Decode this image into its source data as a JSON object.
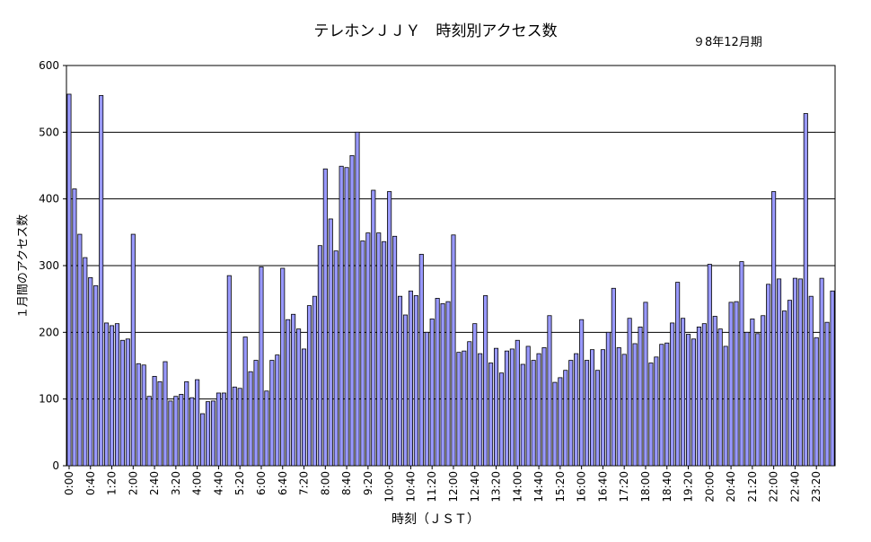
{
  "chart_data": {
    "type": "bar",
    "title": "テレホンＪＪＹ　時刻別アクセス数",
    "subtitle": "９8年12月期",
    "xlabel": "時刻（ＪＳＴ）",
    "ylabel": "１月間のアクセス数",
    "ylim": [
      0,
      600
    ],
    "yticks": [
      0,
      100,
      200,
      300,
      400,
      500,
      600
    ],
    "xticks": [
      "0:00",
      "0:40",
      "1:20",
      "2:00",
      "2:40",
      "3:20",
      "4:00",
      "4:40",
      "5:20",
      "6:00",
      "6:40",
      "7:20",
      "8:00",
      "8:40",
      "9:20",
      "10:00",
      "10:40",
      "11:20",
      "12:00",
      "12:40",
      "13:20",
      "14:00",
      "14:40",
      "15:20",
      "16:00",
      "16:40",
      "17:20",
      "18:00",
      "18:40",
      "19:20",
      "20:00",
      "20:40",
      "21:20",
      "22:00",
      "22:40",
      "23:20"
    ],
    "grid": true,
    "bar_color": "#9999ff",
    "values": [
      557,
      415,
      347,
      312,
      282,
      270,
      555,
      214,
      210,
      213,
      188,
      190,
      347,
      153,
      151,
      104,
      134,
      126,
      156,
      97,
      104,
      107,
      126,
      102,
      129,
      78,
      96,
      97,
      109,
      109,
      285,
      118,
      116,
      193,
      141,
      158,
      298,
      112,
      158,
      166,
      296,
      219,
      227,
      205,
      175,
      240,
      254,
      330,
      445,
      370,
      322,
      449,
      447,
      465,
      500,
      337,
      349,
      413,
      349,
      336,
      411,
      344,
      254,
      226,
      262,
      255,
      317,
      200,
      220,
      251,
      243,
      246,
      346,
      170,
      172,
      186,
      213,
      168,
      255,
      154,
      176,
      139,
      172,
      175,
      188,
      152,
      179,
      158,
      168,
      177,
      225,
      125,
      132,
      143,
      158,
      168,
      219,
      158,
      174,
      143,
      174,
      200,
      266,
      177,
      167,
      221,
      183,
      208,
      245,
      154,
      163,
      182,
      184,
      214,
      275,
      221,
      197,
      190,
      208,
      213,
      302,
      224,
      205,
      179,
      245,
      246,
      306,
      200,
      220,
      198,
      225,
      272,
      411,
      280,
      232,
      248,
      281,
      280,
      528,
      254,
      192,
      281,
      215,
      262
    ]
  }
}
